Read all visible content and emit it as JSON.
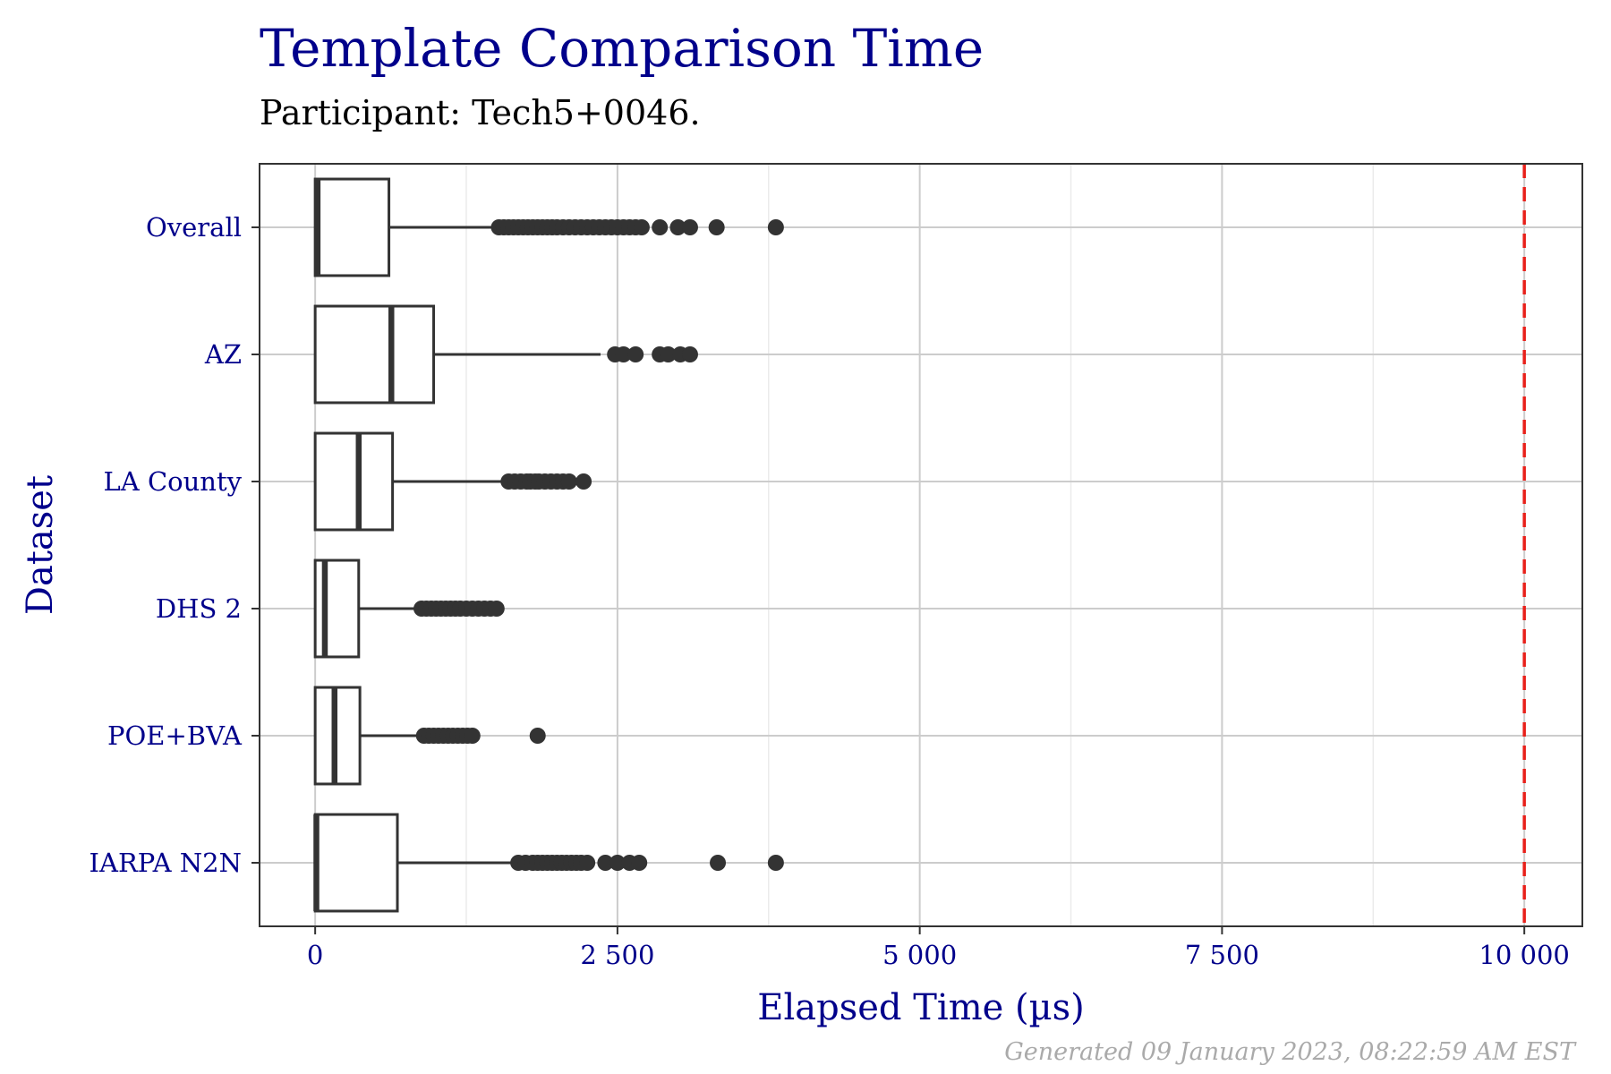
{
  "footer": "Generated 09 January 2023, 08:22:59 AM EST",
  "colors": {
    "title": "#00008B",
    "box": "#333333",
    "grid_major": "#cccccc",
    "grid_minor": "#ebebeb",
    "reference_line": "#e8201a"
  },
  "chart_data": {
    "type": "boxplot",
    "orientation": "horizontal",
    "title": "Template Comparison Time",
    "subtitle": "Participant: Tech5+0046.",
    "xlabel": "Elapsed Time (µs)",
    "ylabel": "Dataset",
    "xlim": [
      -460,
      10480
    ],
    "xticks": [
      0,
      2500,
      5000,
      7500,
      10000
    ],
    "xtick_labels": [
      "0",
      "2 500",
      "5 000",
      "7 500",
      "10 000"
    ],
    "grid": true,
    "reference_line": {
      "x": 10000,
      "style": "dashed",
      "color": "#e8201a"
    },
    "categories": [
      "Overall",
      "AZ",
      "LA County",
      "DHS 2",
      "POE+BVA",
      "IARPA N2N"
    ],
    "boxes": [
      {
        "label": "Overall",
        "q1": 0,
        "median": 20,
        "q3": 610,
        "whisker_low": 0,
        "whisker_high": 1500,
        "outliers": [
          1520,
          1560,
          1600,
          1640,
          1680,
          1720,
          1760,
          1800,
          1840,
          1880,
          1920,
          1960,
          2000,
          2050,
          2100,
          2150,
          2200,
          2250,
          2300,
          2350,
          2400,
          2450,
          2500,
          2550,
          2600,
          2650,
          2700,
          2850,
          3000,
          3100,
          3320,
          3810
        ]
      },
      {
        "label": "AZ",
        "q1": 0,
        "median": 630,
        "q3": 980,
        "whisker_low": 0,
        "whisker_high": 2360,
        "outliers": [
          2480,
          2550,
          2650,
          2850,
          2920,
          3020,
          3100
        ]
      },
      {
        "label": "LA County",
        "q1": 0,
        "median": 360,
        "q3": 640,
        "whisker_low": 0,
        "whisker_high": 1570,
        "outliers": [
          1600,
          1650,
          1700,
          1750,
          1780,
          1820,
          1850,
          1900,
          1950,
          2000,
          2050,
          2100,
          2220
        ]
      },
      {
        "label": "DHS 2",
        "q1": 0,
        "median": 80,
        "q3": 360,
        "whisker_low": 0,
        "whisker_high": 870,
        "outliers": [
          880,
          920,
          960,
          1000,
          1040,
          1080,
          1120,
          1160,
          1200,
          1250,
          1300,
          1350,
          1400,
          1450,
          1500
        ]
      },
      {
        "label": "POE+BVA",
        "q1": 0,
        "median": 160,
        "q3": 370,
        "whisker_low": 0,
        "whisker_high": 880,
        "outliers": [
          900,
          940,
          980,
          1020,
          1060,
          1100,
          1140,
          1180,
          1220,
          1260,
          1300,
          1840
        ]
      },
      {
        "label": "IARPA N2N",
        "q1": 0,
        "median": 10,
        "q3": 680,
        "whisker_low": 0,
        "whisker_high": 1640,
        "outliers": [
          1680,
          1740,
          1800,
          1840,
          1880,
          1920,
          1960,
          2000,
          2040,
          2080,
          2120,
          2160,
          2200,
          2250,
          2400,
          2500,
          2600,
          2680,
          3330,
          3810
        ]
      }
    ]
  }
}
